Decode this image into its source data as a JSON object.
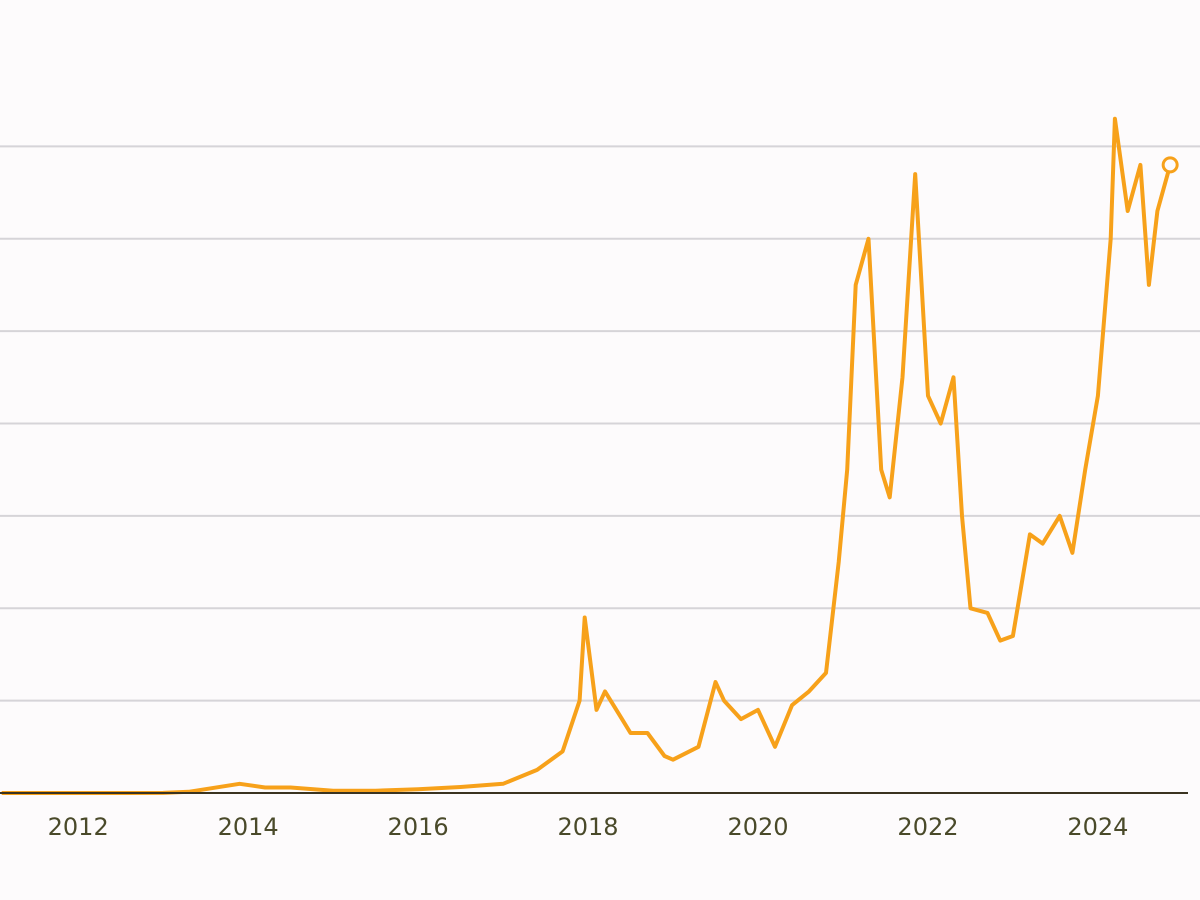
{
  "chart_data": {
    "type": "line",
    "x": [
      2011.1,
      2012.0,
      2013.0,
      2013.3,
      2013.9,
      2014.2,
      2014.5,
      2015.0,
      2015.5,
      2016.0,
      2016.5,
      2017.0,
      2017.4,
      2017.7,
      2017.9,
      2017.96,
      2018.1,
      2018.2,
      2018.4,
      2018.5,
      2018.7,
      2018.9,
      2019.0,
      2019.3,
      2019.5,
      2019.6,
      2019.8,
      2020.0,
      2020.2,
      2020.4,
      2020.6,
      2020.8,
      2020.95,
      2021.05,
      2021.15,
      2021.3,
      2021.45,
      2021.55,
      2021.7,
      2021.85,
      2022.0,
      2022.15,
      2022.3,
      2022.4,
      2022.5,
      2022.7,
      2022.85,
      2023.0,
      2023.2,
      2023.35,
      2023.55,
      2023.7,
      2023.85,
      2024.0,
      2024.15,
      2024.2,
      2024.35,
      2024.5,
      2024.6,
      2024.7,
      2024.85
    ],
    "values": [
      1,
      5,
      13,
      130,
      1000,
      600,
      600,
      250,
      250,
      400,
      650,
      1000,
      2500,
      4500,
      10000,
      19000,
      9000,
      11000,
      8000,
      6500,
      6500,
      4000,
      3600,
      5000,
      12000,
      10000,
      8000,
      9000,
      5000,
      9500,
      11000,
      13000,
      25000,
      35000,
      55000,
      60000,
      35000,
      32000,
      45000,
      67000,
      43000,
      40000,
      45000,
      30000,
      20000,
      19500,
      16500,
      17000,
      28000,
      27000,
      30000,
      26000,
      35000,
      43000,
      60000,
      73000,
      63000,
      68000,
      55000,
      63000,
      68000
    ],
    "color": "#f7a11a",
    "xlim": [
      2011.08,
      2025.06
    ],
    "xticks": [
      2012,
      2014,
      2016,
      2018,
      2020,
      2022,
      2024
    ],
    "ylim": [
      0,
      80000
    ],
    "yticks": [
      10000,
      20000,
      30000,
      40000,
      50000,
      60000,
      70000
    ],
    "grid": true,
    "end_marker": true
  }
}
